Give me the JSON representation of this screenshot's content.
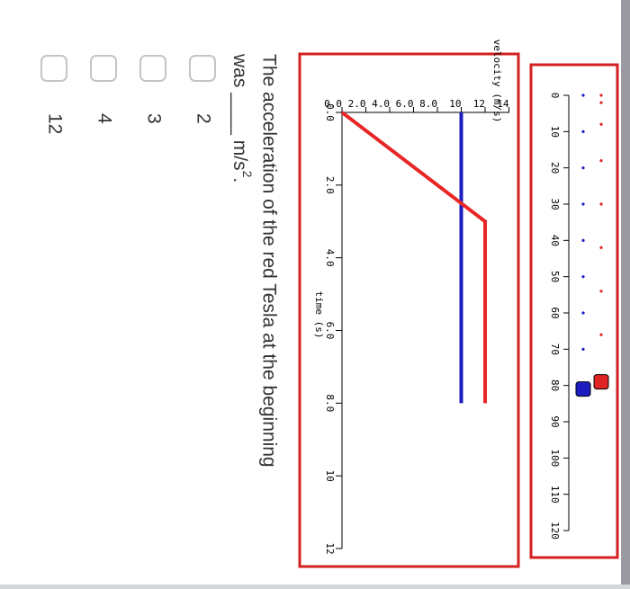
{
  "position_diagram": {
    "xlim": [
      0,
      120
    ],
    "xticks": [
      0,
      10,
      20,
      30,
      40,
      50,
      60,
      70,
      80,
      90,
      100,
      110,
      120
    ],
    "series": [
      {
        "color": "#e02424",
        "dots": [
          0,
          2,
          8,
          18,
          30,
          42,
          54,
          66
        ],
        "car": 78
      },
      {
        "color": "#1c1cc0",
        "dots": [
          0,
          10,
          20,
          30,
          40,
          50,
          60,
          70
        ],
        "car": 80
      }
    ]
  },
  "chart_data": {
    "type": "line",
    "ylabel": "velocity (m/s)",
    "xlabel": "time (s)",
    "xlim": [
      0,
      12
    ],
    "ylim": [
      0,
      14
    ],
    "xticks": [
      {
        "value": 0,
        "label": "0.0"
      },
      {
        "value": 2,
        "label": "2.0"
      },
      {
        "value": 4,
        "label": "4.0"
      },
      {
        "value": 6,
        "label": "6.0"
      },
      {
        "value": 8,
        "label": "8.0"
      },
      10,
      12
    ],
    "yticks": [
      {
        "value": 0,
        "label": "0.0"
      },
      {
        "value": 2,
        "label": "2.0"
      },
      {
        "value": 4,
        "label": "4.0"
      },
      {
        "value": 6,
        "label": "6.0"
      },
      {
        "value": 8,
        "label": "8.0"
      },
      10,
      12,
      14
    ],
    "series": [
      {
        "color": "#1c1cc0",
        "x": [
          0,
          8
        ],
        "values": [
          10,
          10
        ]
      },
      {
        "color": "#e82626",
        "x": [
          0,
          3,
          8
        ],
        "values": [
          0,
          12,
          12
        ]
      }
    ]
  },
  "question": {
    "text": "The acceleration of the red Tesla at the beginning",
    "text2": "was",
    "blank": "____",
    "unit": "m/s",
    "unit_exponent": "2",
    "end": "."
  },
  "options": [
    "2",
    "3",
    "4",
    "12"
  ]
}
